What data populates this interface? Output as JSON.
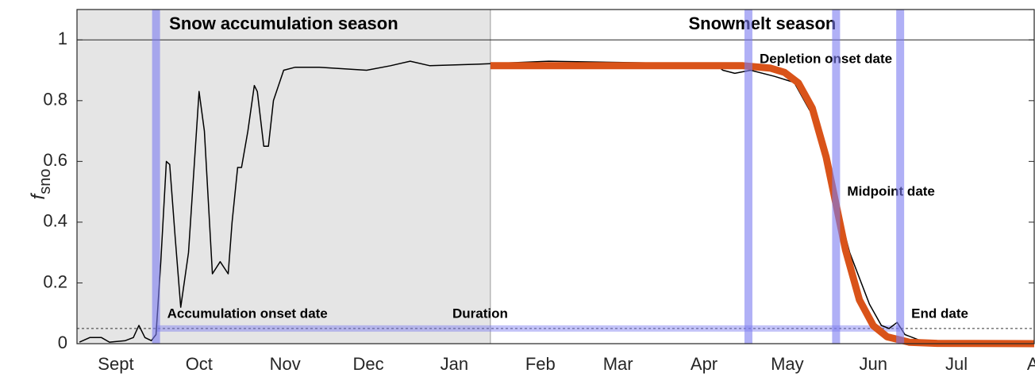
{
  "chart_data": {
    "type": "line",
    "ylabel": {
      "symbol": "f",
      "subscript": "sno"
    },
    "xlim": [
      0,
      345
    ],
    "ylim": [
      0,
      1.1
    ],
    "yticks": [
      0,
      0.2,
      0.4,
      0.6,
      0.8,
      1
    ],
    "xticks": [
      {
        "value": 14,
        "label": "Sept"
      },
      {
        "value": 44,
        "label": "Oct"
      },
      {
        "value": 75,
        "label": "Nov"
      },
      {
        "value": 105,
        "label": "Dec"
      },
      {
        "value": 136,
        "label": "Jan"
      },
      {
        "value": 167,
        "label": "Feb"
      },
      {
        "value": 195,
        "label": "Mar"
      },
      {
        "value": 226,
        "label": "Apr"
      },
      {
        "value": 256,
        "label": "May"
      },
      {
        "value": 287,
        "label": "Jun"
      },
      {
        "value": 317,
        "label": "Jul"
      },
      {
        "value": 348,
        "label": "Aug"
      }
    ],
    "seasons": [
      {
        "label": "Snow accumulation season",
        "start": 0,
        "end": 149,
        "color": "#e5e5e5"
      },
      {
        "label": "Snowmelt season",
        "start": 149,
        "end": 345,
        "color": "#ffffff"
      }
    ],
    "threshold": 0.05,
    "markers": [
      {
        "x": 28.5,
        "label": "Accumulation onset date"
      },
      {
        "x": 242,
        "label": "Depletion onset date"
      },
      {
        "x": 273.6,
        "label": "Midpoint date"
      },
      {
        "x": 296.7,
        "label": "End date"
      }
    ],
    "marker_color": "#7b7bf0",
    "duration": {
      "label": "Duration",
      "start": 28.5,
      "end": 296.7,
      "y": 0.05
    },
    "series": [
      {
        "color": "#000000",
        "x": [
          0.9,
          4.6,
          8.8,
          11.7,
          17.4,
          20.3,
          22.3,
          24.5,
          26.8,
          28.5,
          30.2,
          32.2,
          33.4,
          35.4,
          37.4,
          40.2,
          44,
          45.9,
          48.8,
          51.6,
          54.5,
          55.9,
          57.9,
          59.3,
          61.6,
          63.9,
          65,
          67.3,
          69,
          70.8,
          74.5,
          78.7,
          87.3,
          95.9,
          104.4,
          113,
          120.1,
          127.2,
          144.4,
          170,
          201.4,
          230,
          232.8,
          237.1,
          242.8,
          251.4,
          258.5,
          267,
          272.8,
          278.5,
          285.6,
          289.9,
          292.7,
          295.6,
          298.4,
          304.1
        ],
        "values": [
          0.005,
          0.02,
          0.02,
          0.005,
          0.01,
          0.02,
          0.06,
          0.02,
          0.01,
          0.03,
          0.27,
          0.6,
          0.59,
          0.35,
          0.12,
          0.3,
          0.83,
          0.7,
          0.23,
          0.27,
          0.23,
          0.4,
          0.58,
          0.58,
          0.7,
          0.85,
          0.83,
          0.65,
          0.65,
          0.8,
          0.9,
          0.91,
          0.91,
          0.905,
          0.9,
          0.915,
          0.93,
          0.915,
          0.92,
          0.93,
          0.925,
          0.92,
          0.9,
          0.89,
          0.9,
          0.88,
          0.86,
          0.72,
          0.5,
          0.3,
          0.13,
          0.06,
          0.05,
          0.07,
          0.03,
          0.01
        ]
      },
      {
        "color": "#d95319",
        "x": [
          149,
          240,
          250,
          255,
          260,
          265,
          270,
          273.6,
          277,
          282,
          287,
          292,
          300,
          310,
          345
        ],
        "values": [
          0.915,
          0.915,
          0.907,
          0.893,
          0.858,
          0.776,
          0.615,
          0.458,
          0.308,
          0.144,
          0.059,
          0.0225,
          0.0047,
          0.001,
          0
        ]
      }
    ]
  }
}
